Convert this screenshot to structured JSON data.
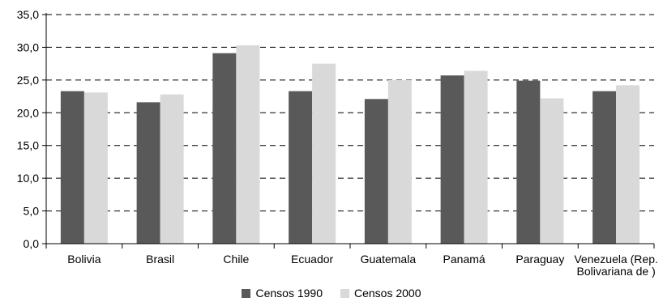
{
  "chart_data": {
    "type": "bar",
    "categories": [
      "Bolivia",
      "Brasil",
      "Chile",
      "Ecuador",
      "Guatemala",
      "Panamá",
      "Paraguay",
      "Venezuela (Rep. Bolivariana de )"
    ],
    "category_lines": [
      [
        "Bolivia"
      ],
      [
        "Brasil"
      ],
      [
        "Chile"
      ],
      [
        "Ecuador"
      ],
      [
        "Guatemala"
      ],
      [
        "Panamá"
      ],
      [
        "Paraguay"
      ],
      [
        "Venezuela (Rep.",
        "Bolivariana de )"
      ]
    ],
    "series": [
      {
        "name": "Censos 1990",
        "color": "#595959",
        "values": [
          23.3,
          21.6,
          29.1,
          23.3,
          22.1,
          25.7,
          24.9,
          23.3
        ]
      },
      {
        "name": "Censos 2000",
        "color": "#d9d9d9",
        "values": [
          23.1,
          22.8,
          30.3,
          27.5,
          25.0,
          26.4,
          22.2,
          24.2
        ]
      }
    ],
    "y_ticks": [
      "0,0",
      "5,0",
      "10,0",
      "15,0",
      "20,0",
      "25,0",
      "30,0",
      "35,0"
    ],
    "ylim": [
      0,
      35
    ],
    "grid": true,
    "legend_position": "bottom"
  }
}
